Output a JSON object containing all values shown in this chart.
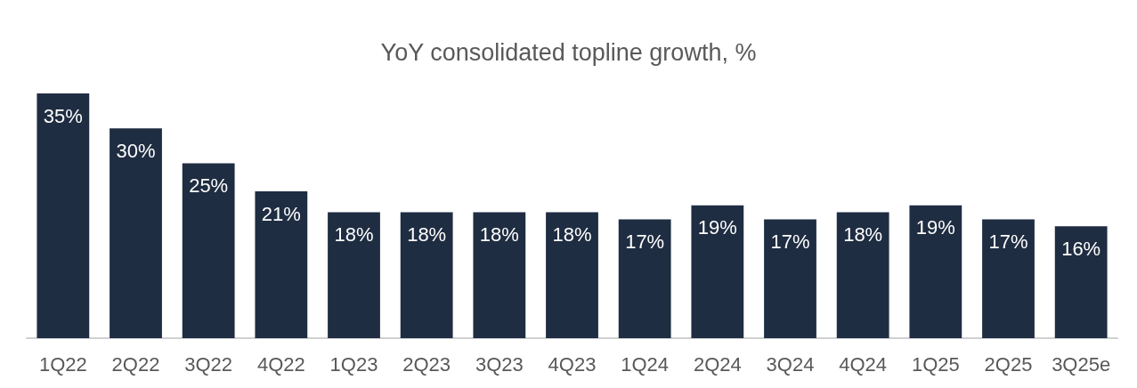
{
  "chart_data": {
    "type": "bar",
    "title": "YoY consolidated topline growth, %",
    "categories": [
      "1Q22",
      "2Q22",
      "3Q22",
      "4Q22",
      "1Q23",
      "2Q23",
      "3Q23",
      "4Q23",
      "1Q24",
      "2Q24",
      "3Q24",
      "4Q24",
      "1Q25",
      "2Q25",
      "3Q25e"
    ],
    "values": [
      35,
      30,
      25,
      21,
      18,
      18,
      18,
      18,
      17,
      19,
      17,
      18,
      19,
      17,
      16
    ],
    "value_labels": [
      "35%",
      "30%",
      "25%",
      "21%",
      "18%",
      "18%",
      "18%",
      "18%",
      "17%",
      "19%",
      "17%",
      "18%",
      "19%",
      "17%",
      "16%"
    ],
    "color": "#1f2d42"
  }
}
